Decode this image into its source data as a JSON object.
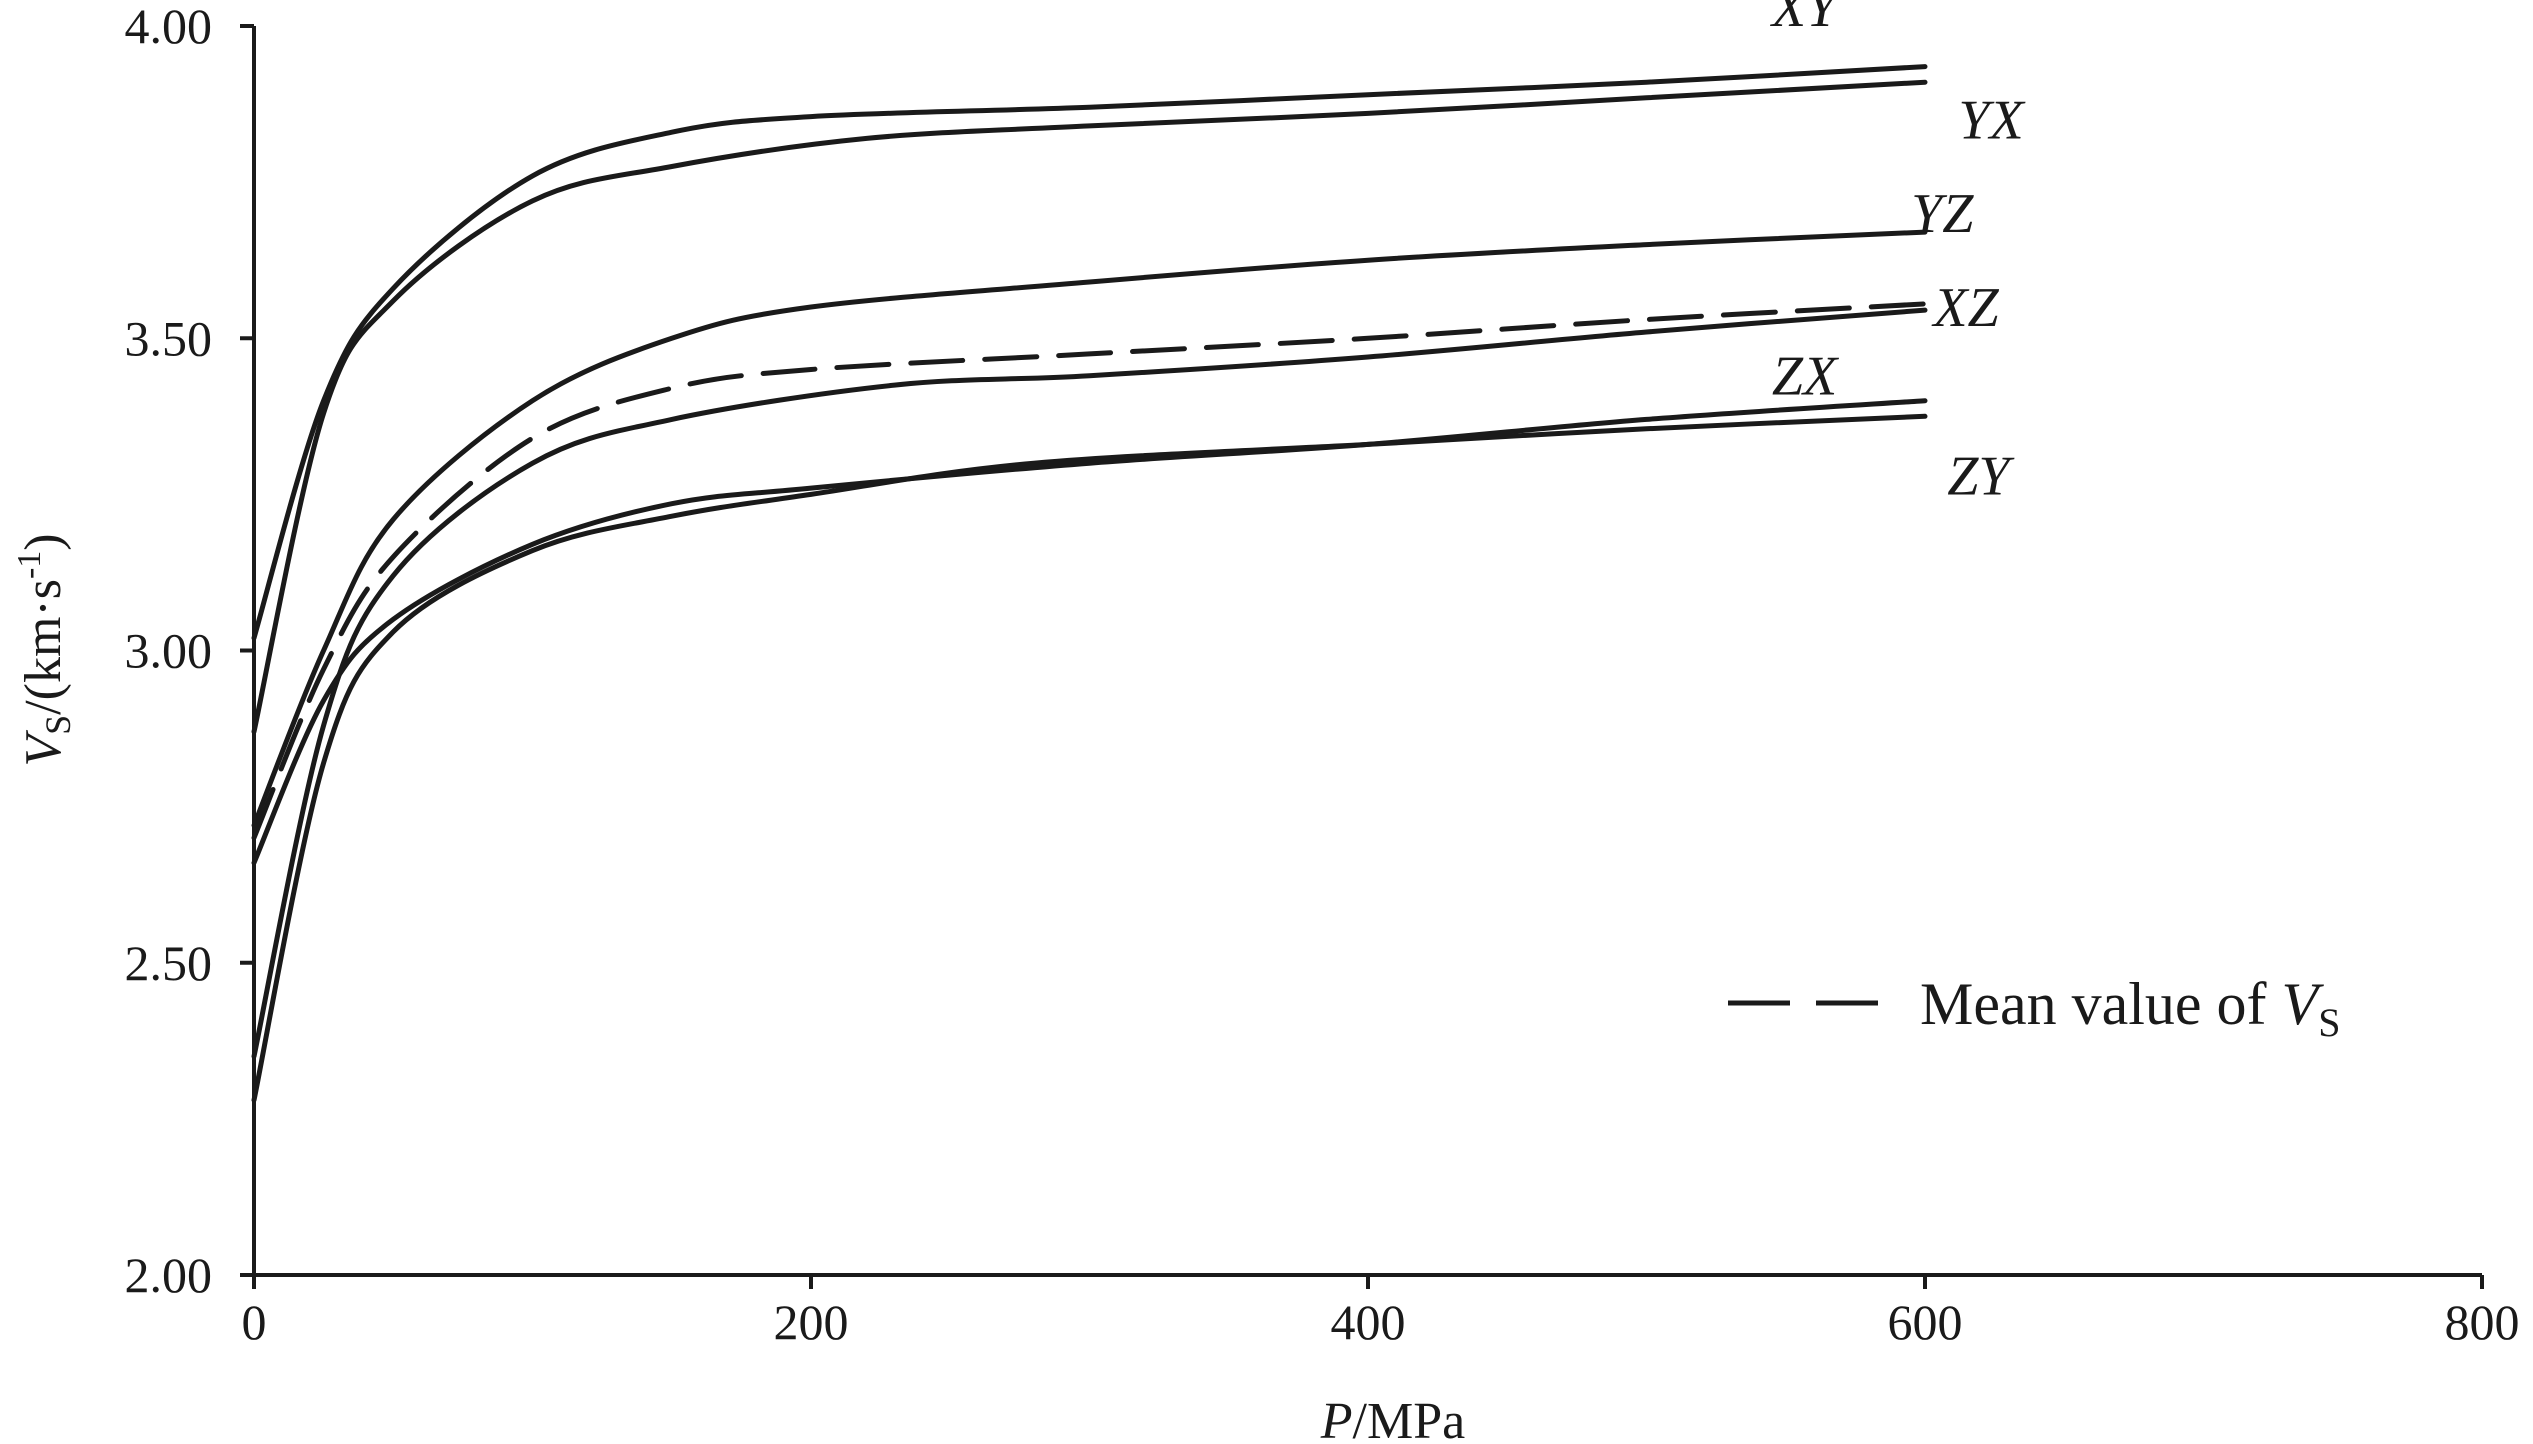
{
  "chart_data": {
    "type": "line",
    "xlabel_var": "P",
    "xlabel_unit": "/MPa",
    "ylabel_var": "V",
    "ylabel_sub": "S",
    "ylabel_unit": "/(km·s",
    "ylabel_exp": "-1",
    "ylabel_close": ")",
    "xlim": [
      0,
      800
    ],
    "ylim": [
      2.0,
      4.0
    ],
    "xticks": [
      0,
      200,
      400,
      600,
      800
    ],
    "xtick_labels": [
      "0",
      "200",
      "400",
      "600",
      "800"
    ],
    "yticks": [
      2.0,
      2.5,
      3.0,
      3.5,
      4.0
    ],
    "ytick_labels": [
      "2.00",
      "2.50",
      "3.00",
      "3.50",
      "4.00"
    ],
    "grid": false,
    "legend_position": "lower-right",
    "legend": {
      "text": "Mean value of ",
      "var": "V",
      "sub": "S"
    },
    "series": [
      {
        "name": "XY",
        "style": "solid",
        "x": [
          0,
          25,
          50,
          100,
          150,
          200,
          300,
          400,
          500,
          600
        ],
        "y": [
          3.02,
          3.4,
          3.58,
          3.76,
          3.83,
          3.855,
          3.87,
          3.89,
          3.91,
          3.935
        ]
      },
      {
        "name": "YX",
        "style": "solid",
        "x": [
          0,
          25,
          50,
          100,
          150,
          220,
          300,
          400,
          500,
          600
        ],
        "y": [
          2.87,
          3.38,
          3.56,
          3.72,
          3.775,
          3.82,
          3.84,
          3.86,
          3.885,
          3.91
        ]
      },
      {
        "name": "YZ",
        "style": "solid",
        "x": [
          0,
          25,
          50,
          100,
          150,
          200,
          300,
          400,
          500,
          600
        ],
        "y": [
          2.72,
          3.0,
          3.21,
          3.4,
          3.5,
          3.55,
          3.59,
          3.625,
          3.65,
          3.67
        ]
      },
      {
        "name": "XZ",
        "style": "solid",
        "x": [
          0,
          25,
          50,
          100,
          150,
          230,
          300,
          400,
          500,
          600
        ],
        "y": [
          2.35,
          2.88,
          3.12,
          3.3,
          3.37,
          3.425,
          3.44,
          3.47,
          3.51,
          3.545
        ]
      },
      {
        "name": "ZX",
        "style": "solid",
        "x": [
          0,
          25,
          50,
          100,
          150,
          200,
          300,
          400,
          500,
          600
        ],
        "y": [
          2.66,
          2.92,
          3.05,
          3.17,
          3.235,
          3.26,
          3.3,
          3.33,
          3.37,
          3.4
        ]
      },
      {
        "name": "ZY",
        "style": "solid",
        "x": [
          0,
          25,
          50,
          100,
          150,
          200,
          280,
          400,
          500,
          600
        ],
        "y": [
          2.28,
          2.82,
          3.03,
          3.16,
          3.215,
          3.25,
          3.3,
          3.33,
          3.355,
          3.375
        ]
      },
      {
        "name": "Mean value of VS",
        "style": "dashed",
        "x": [
          0,
          25,
          50,
          100,
          150,
          200,
          300,
          400,
          500,
          600
        ],
        "y": [
          2.7,
          2.97,
          3.15,
          3.34,
          3.42,
          3.45,
          3.475,
          3.5,
          3.53,
          3.555
        ]
      }
    ],
    "label_anchor_values": {
      "XY": [
        545,
        4.0
      ],
      "YX": [
        612,
        3.82
      ],
      "YZ": [
        595,
        3.67
      ],
      "XZ": [
        603,
        3.52
      ],
      "ZX": [
        545,
        3.41
      ],
      "ZY": [
        608,
        3.25
      ]
    }
  }
}
